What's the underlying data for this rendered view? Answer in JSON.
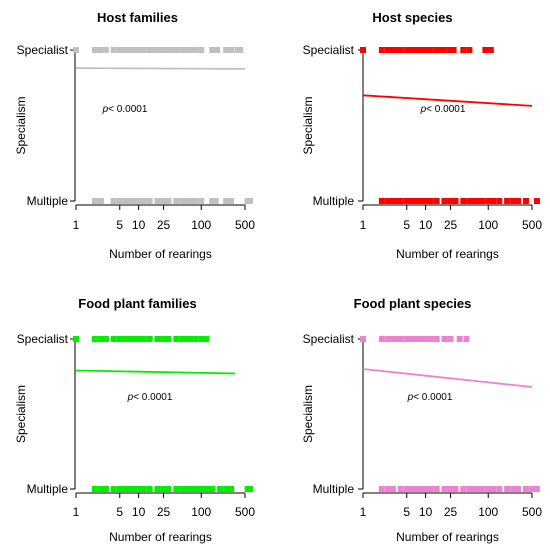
{
  "chart_data": [
    {
      "type": "scatter",
      "title": "Host families",
      "xlabel": "Number of rearings",
      "ylabel": "Specialism",
      "ytick_labels": [
        "Multiple",
        "Specialist"
      ],
      "xticks": [
        1,
        5,
        10,
        25,
        100,
        500
      ],
      "x_scale": "log",
      "xlim": [
        1,
        500
      ],
      "annotation_italic": "p",
      "annotation_rest": "< 0.0001",
      "color": "#c0c0c0",
      "specialist_x": [
        1,
        2,
        2.5,
        3,
        4,
        5,
        6,
        7,
        8,
        9,
        10,
        12,
        15,
        18,
        20,
        25,
        30,
        35,
        40,
        50,
        60,
        70,
        80,
        100,
        150,
        180,
        250,
        300,
        380,
        420
      ],
      "multiple_x": [
        2,
        2.5,
        4,
        5,
        6,
        7,
        8,
        9,
        10,
        12,
        15,
        20,
        25,
        30,
        40,
        50,
        60,
        70,
        80,
        100,
        150,
        170,
        250,
        300,
        550,
        600
      ],
      "fit": {
        "x": [
          1,
          500
        ],
        "y": [
          0.88,
          0.875
        ]
      }
    },
    {
      "type": "scatter",
      "title": "Host species",
      "xlabel": "Number of rearings",
      "ylabel": "Specialism",
      "ytick_labels": [
        "Multiple",
        "Specialist"
      ],
      "xticks": [
        1,
        5,
        10,
        25,
        100,
        500
      ],
      "x_scale": "log",
      "xlim": [
        1,
        500
      ],
      "annotation_italic": "p",
      "annotation_rest": "< 0.0001",
      "color": "#ff0000",
      "specialist_x": [
        1,
        2,
        2.5,
        3,
        3.5,
        4,
        5,
        6,
        7,
        8,
        9,
        10,
        12,
        15,
        18,
        20,
        25,
        28,
        40,
        50,
        90,
        110
      ],
      "multiple_x": [
        2,
        2.5,
        3,
        3.5,
        4,
        5,
        6,
        7,
        8,
        9,
        10,
        12,
        15,
        20,
        25,
        30,
        40,
        50,
        60,
        70,
        80,
        100,
        120,
        150,
        200,
        250,
        300,
        400,
        600
      ],
      "fit": {
        "x": [
          1,
          500
        ],
        "y": [
          0.7,
          0.63
        ]
      }
    },
    {
      "type": "scatter",
      "title": "Food plant families",
      "xlabel": "Number of rearings",
      "ylabel": "Specialism",
      "ytick_labels": [
        "Multiple",
        "Specialist"
      ],
      "xticks": [
        1,
        5,
        10,
        25,
        100,
        500
      ],
      "x_scale": "log",
      "xlim": [
        1,
        500
      ],
      "annotation_italic": "p",
      "annotation_rest": "< 0.0001",
      "color": "#00ee00",
      "specialist_x": [
        1,
        2,
        2.5,
        3,
        4,
        5,
        6,
        7,
        8,
        9,
        10,
        12,
        15,
        20,
        25,
        30,
        40,
        50,
        60,
        70,
        80,
        100,
        110,
        120
      ],
      "multiple_x": [
        2,
        2.5,
        3,
        4,
        5,
        6,
        7,
        8,
        9,
        10,
        12,
        15,
        20,
        25,
        30,
        40,
        50,
        60,
        70,
        80,
        90,
        110,
        130,
        150,
        200,
        250,
        300,
        550,
        600
      ],
      "fit": {
        "x": [
          1,
          350
        ],
        "y": [
          0.79,
          0.77
        ]
      }
    },
    {
      "type": "scatter",
      "title": "Food plant species",
      "xlabel": "Number of rearings",
      "ylabel": "Specialism",
      "ytick_labels": [
        "Multiple",
        "Specialist"
      ],
      "xticks": [
        1,
        5,
        10,
        25,
        100,
        500
      ],
      "x_scale": "log",
      "xlim": [
        1,
        500
      ],
      "annotation_italic": "p",
      "annotation_rest": "< 0.0001",
      "color": "#ee82d2",
      "specialist_x": [
        1,
        2,
        2.5,
        3,
        3.5,
        4,
        5,
        6,
        7,
        8,
        9,
        10,
        12,
        15,
        20,
        25,
        35,
        45
      ],
      "multiple_x": [
        2,
        2.5,
        3,
        4,
        5,
        6,
        7,
        8,
        9,
        10,
        12,
        15,
        20,
        25,
        30,
        40,
        50,
        60,
        70,
        80,
        90,
        100,
        120,
        150,
        200,
        250,
        300,
        400,
        500,
        600
      ],
      "fit": {
        "x": [
          1,
          500
        ],
        "y": [
          0.8,
          0.68
        ]
      }
    }
  ]
}
